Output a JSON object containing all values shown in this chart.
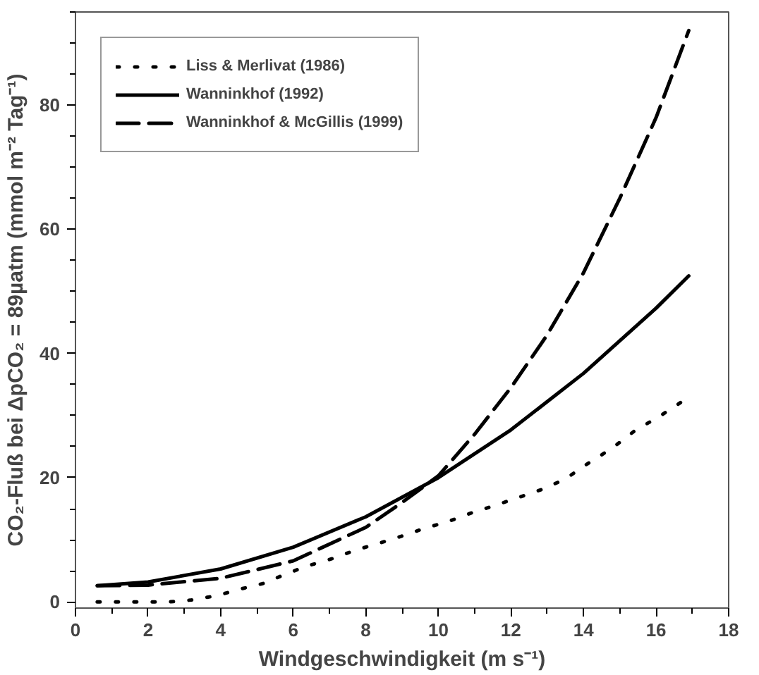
{
  "chart_data": {
    "type": "line",
    "xlabel": "Windgeschwindigkeit (m s⁻¹)",
    "ylabel": "CO₂-Fluß bei ΔpCO₂ = 89µatm (mmol m⁻² Tag⁻¹)",
    "xlim": [
      0,
      18
    ],
    "xticks": [
      0,
      2,
      4,
      6,
      8,
      10,
      12,
      14,
      16,
      18
    ],
    "ylim": [
      -1,
      95
    ],
    "yticks": [
      0,
      20,
      40,
      60,
      80
    ],
    "grid": false,
    "legend": "top left",
    "series": [
      {
        "name": "Liss & Merlivat (1986)",
        "color": "#000000",
        "line_style": "dotted",
        "x": [
          0.6,
          1.3,
          1.9,
          2.6,
          3.2,
          3.9,
          4.5,
          5.2,
          5.8,
          6.4,
          7.1,
          7.7,
          8.4,
          9.0,
          9.6,
          10.3,
          10.9,
          11.6,
          12.2,
          12.9,
          13.5,
          14.1,
          14.8,
          15.4,
          16.1,
          16.7
        ],
        "values": [
          0,
          0,
          0,
          0,
          0.3,
          1,
          2,
          3,
          4.5,
          5.8,
          7,
          8.3,
          9.5,
          10.6,
          11.8,
          13,
          14.3,
          15.6,
          16.8,
          18.2,
          19.8,
          22.2,
          24.8,
          27.5,
          29.9,
          32.2
        ]
      },
      {
        "name": "Wanninkhof (1992)",
        "color": "#000000",
        "line_style": "solid",
        "x": [
          0.6,
          2,
          4,
          6,
          8,
          10,
          12,
          14,
          16,
          16.9
        ],
        "values": [
          2.6,
          3.2,
          5.3,
          8.8,
          13.7,
          20,
          27.7,
          36.8,
          47.3,
          52.5
        ]
      },
      {
        "name": "Wanninkhof & McGillis (1999)",
        "color": "#000000",
        "line_style": "dashed",
        "x": [
          0.6,
          2,
          4,
          6,
          8,
          9,
          10,
          11,
          12,
          13,
          14,
          15,
          16,
          16.9
        ],
        "values": [
          2.6,
          2.7,
          3.8,
          6.6,
          12,
          16,
          20.3,
          27,
          34.5,
          43,
          53,
          65,
          78,
          92
        ]
      }
    ]
  }
}
